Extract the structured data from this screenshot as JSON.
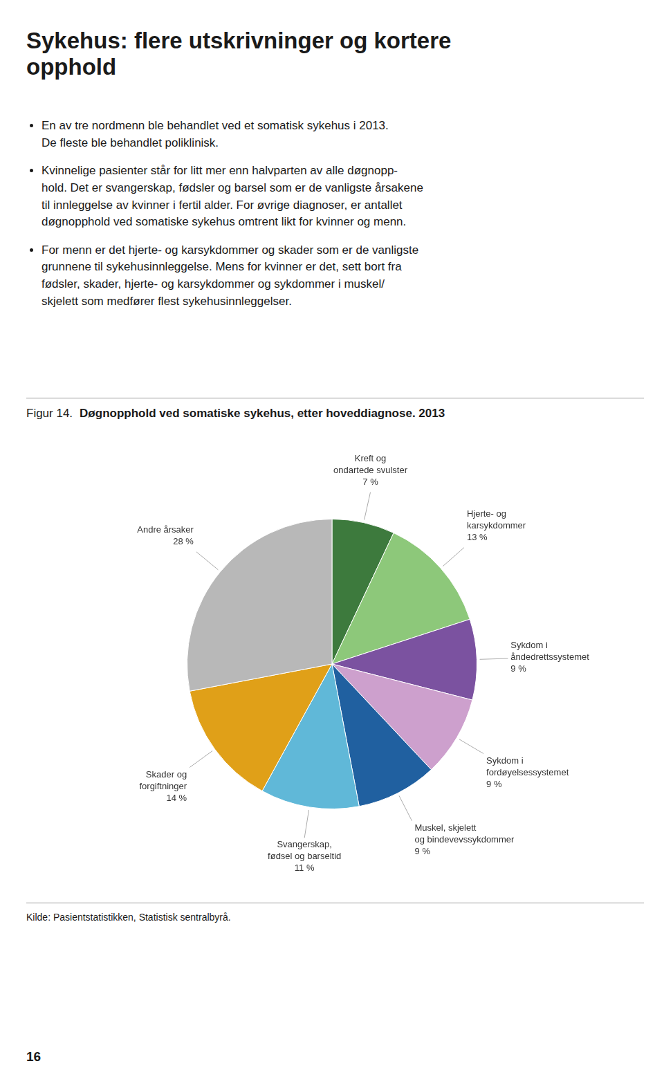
{
  "title": "Sykehus: flere utskrivninger og kortere\nopphold",
  "bullets": [
    "En av tre nordmenn ble behandlet ved et somatisk sykehus i 2013.\nDe fleste ble behandlet poliklinisk.",
    "Kvinnelige pasienter står for litt mer enn halvparten av alle døgnopp-\nhold. Det er svangerskap, fødsler og barsel som er de vanligste årsakene\ntil innleggelse av kvinner i fertil alder. For øvrige diagnoser, er antallet\ndøgnopphold ved somatiske sykehus omtrent likt for kvinner og menn.",
    "For menn er det hjerte- og karsykdommer og skader som er de vanligste\ngrunnene til sykehusinnleggelse. Mens for kvinner er det, sett bort fra\nfødsler, skader, hjerte- og karsykdommer og sykdommer i muskel/\nskjelett som medfører flest sykehusinnleggelser."
  ],
  "page_number": "16",
  "chart_data": {
    "type": "pie",
    "figure_label": "Figur 14.",
    "title": "Døgnopphold ved somatiske sykehus, etter hoveddiagnose. 2013",
    "source": "Kilde: Pasientstatistikken, Statistisk sentralbyrå.",
    "categories": [
      "Kreft og\nondartede svulster",
      "Hjerte- og\nkarsykdommer",
      "Sykdom i\nåndedrettssystemet",
      "Sykdom i\nfordøyelsessystemet",
      "Muskel, skjelett\nog bindevevssykdommer",
      "Svangerskap,\nfødsel og barseltid",
      "Skader og\nforgiftninger",
      "Andre årsaker"
    ],
    "values": [
      7,
      13,
      9,
      9,
      9,
      11,
      14,
      28
    ],
    "value_labels": [
      "7 %",
      "13 %",
      "9 %",
      "9 %",
      "9 %",
      "11 %",
      "14 %",
      "28 %"
    ],
    "colors": [
      "#3d7a3d",
      "#8dc87a",
      "#7b52a0",
      "#cda0cd",
      "#2060a0",
      "#60b8d8",
      "#e0a018",
      "#b8b8b8"
    ],
    "data_labels": true
  }
}
